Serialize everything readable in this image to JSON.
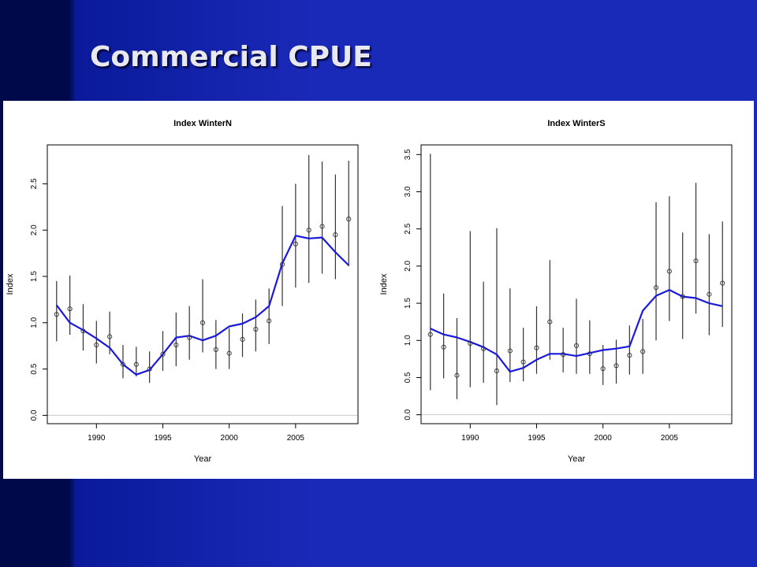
{
  "slide": {
    "title": "Commercial CPUE"
  },
  "colors": {
    "fit_line": "#1a1adc",
    "error_bar": "#333333",
    "point": "#333333",
    "zero_line": "#cccccc"
  },
  "chart_data": [
    {
      "type": "line",
      "title": "Index WinterN",
      "xlabel": "Year",
      "ylabel": "Index",
      "xlim": [
        1986.3,
        2009.7
      ],
      "ylim": [
        -0.09,
        2.92
      ],
      "xticks": [
        1990,
        1995,
        2000,
        2005
      ],
      "xtick_labels": [
        "1990",
        "1995",
        "2000",
        "2005"
      ],
      "yticks": [
        0,
        0.5,
        1,
        1.5,
        2,
        2.5
      ],
      "ytick_labels": [
        "0.0",
        "0.5",
        "1.0",
        "1.5",
        "2.0",
        "2.5"
      ],
      "grid": false,
      "x": [
        1987,
        1988,
        1989,
        1990,
        1991,
        1992,
        1993,
        1994,
        1995,
        1996,
        1997,
        1998,
        1999,
        2000,
        2001,
        2002,
        2003,
        2004,
        2005,
        2006,
        2007,
        2008,
        2009
      ],
      "observed": [
        1.09,
        1.15,
        0.91,
        0.76,
        0.85,
        0.55,
        0.55,
        0.5,
        0.66,
        0.76,
        0.84,
        1.0,
        0.71,
        0.67,
        0.82,
        0.93,
        1.02,
        1.63,
        1.85,
        2.0,
        2.04,
        1.95,
        2.12
      ],
      "lower": [
        0.8,
        0.87,
        0.7,
        0.56,
        0.66,
        0.4,
        0.42,
        0.35,
        0.48,
        0.53,
        0.6,
        0.68,
        0.5,
        0.5,
        0.63,
        0.69,
        0.77,
        1.18,
        1.38,
        1.43,
        1.53,
        1.47,
        1.61
      ],
      "upper": [
        1.45,
        1.51,
        1.2,
        1.02,
        1.12,
        0.76,
        0.74,
        0.69,
        0.91,
        1.11,
        1.18,
        1.47,
        1.03,
        0.94,
        1.1,
        1.25,
        1.37,
        2.26,
        2.5,
        2.81,
        2.74,
        2.6,
        2.75
      ],
      "fitted": [
        1.19,
        1.0,
        0.92,
        0.83,
        0.73,
        0.55,
        0.44,
        0.49,
        0.66,
        0.84,
        0.86,
        0.81,
        0.86,
        0.96,
        0.99,
        1.06,
        1.18,
        1.64,
        1.94,
        1.91,
        1.92,
        1.76,
        1.62
      ]
    },
    {
      "type": "line",
      "title": "Index WinterS",
      "xlabel": "Year",
      "ylabel": "Index",
      "xlim": [
        1986.3,
        2009.7
      ],
      "ylim": [
        -0.12,
        3.63
      ],
      "xticks": [
        1990,
        1995,
        2000,
        2005
      ],
      "xtick_labels": [
        "1990",
        "1995",
        "2000",
        "2005"
      ],
      "yticks": [
        0,
        0.5,
        1,
        1.5,
        2,
        2.5,
        3,
        3.5
      ],
      "ytick_labels": [
        "0.0",
        "0.5",
        "1.0",
        "1.5",
        "2.0",
        "2.5",
        "3.0",
        "3.5"
      ],
      "grid": false,
      "x": [
        1987,
        1988,
        1989,
        1990,
        1991,
        1992,
        1993,
        1994,
        1995,
        1996,
        1997,
        1998,
        1999,
        2000,
        2001,
        2002,
        2003,
        2004,
        2005,
        2006,
        2007,
        2008,
        2009
      ],
      "observed": [
        1.08,
        0.91,
        0.53,
        0.96,
        0.89,
        0.59,
        0.86,
        0.71,
        0.9,
        1.25,
        0.81,
        0.93,
        0.82,
        0.62,
        0.66,
        0.8,
        0.85,
        1.71,
        1.93,
        1.59,
        2.07,
        1.62,
        1.77
      ],
      "lower": [
        0.33,
        0.49,
        0.21,
        0.37,
        0.43,
        0.13,
        0.44,
        0.45,
        0.55,
        0.74,
        0.57,
        0.55,
        0.55,
        0.4,
        0.42,
        0.54,
        0.55,
        1.0,
        1.26,
        1.02,
        1.36,
        1.07,
        1.18
      ],
      "upper": [
        3.51,
        1.63,
        1.3,
        2.47,
        1.79,
        2.51,
        1.7,
        1.17,
        1.46,
        2.08,
        1.17,
        1.56,
        1.27,
        0.94,
        1.01,
        1.2,
        1.29,
        2.86,
        2.94,
        2.45,
        3.12,
        2.43,
        2.6
      ],
      "fitted": [
        1.16,
        1.08,
        1.04,
        0.98,
        0.91,
        0.81,
        0.58,
        0.63,
        0.74,
        0.82,
        0.82,
        0.79,
        0.83,
        0.87,
        0.89,
        0.92,
        1.4,
        1.6,
        1.68,
        1.59,
        1.57,
        1.5,
        1.46
      ]
    }
  ]
}
